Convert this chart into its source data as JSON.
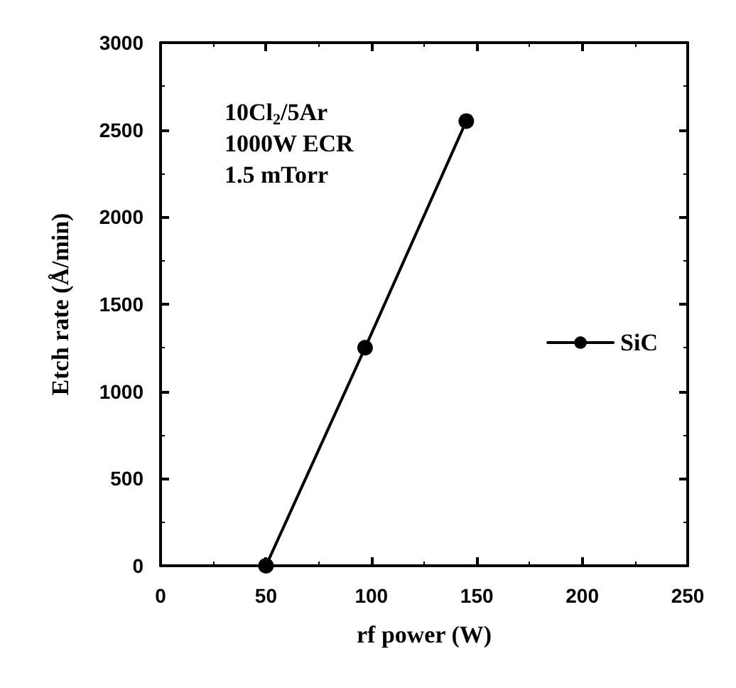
{
  "chart_data": {
    "type": "line",
    "xlabel": "rf power (W)",
    "ylabel": "Etch rate (Å/min)",
    "x": [
      50,
      97,
      145
    ],
    "series": [
      {
        "name": "SiC",
        "color": "#000000",
        "values": [
          0,
          1250,
          2550
        ]
      }
    ],
    "xlim": [
      0,
      250
    ],
    "xticks": [
      0,
      50,
      100,
      150,
      200,
      250
    ],
    "ylim": [
      0,
      3000
    ],
    "yticks": [
      0,
      500,
      1000,
      1500,
      2000,
      2500,
      3000
    ],
    "annotations": [
      "10Cl$_{2}$/5Ar",
      "1000W ECR",
      "1.5 mTorr"
    ],
    "marker": "circle",
    "line_style": "solid",
    "legend": "right",
    "grid": false
  }
}
